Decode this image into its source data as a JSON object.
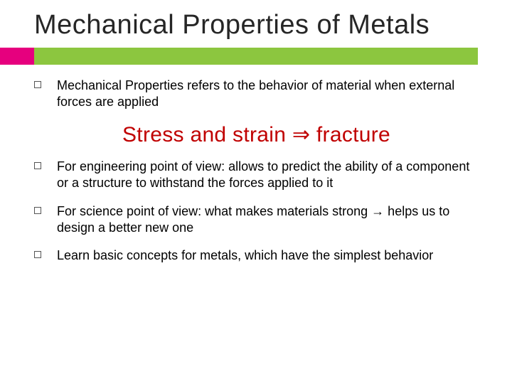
{
  "title": "Mechanical Properties of Metals",
  "accent": {
    "pink": "#e6007e",
    "green": "#8cc63f"
  },
  "bullets": {
    "b0": "Mechanical Properties refers to the behavior of material when external forces are applied",
    "b1": "For engineering point of view: allows to predict the ability of a component or a structure to withstand the forces applied to it",
    "b2": "For science point of view: what makes materials strong → helps us to design a better new one",
    "b3": "Learn basic concepts for metals, which have the simplest behavior"
  },
  "sub_headline": {
    "text": "Stress and strain ⇒ fracture",
    "color": "#c00000",
    "fontsize": 30
  },
  "body_fontsize": 18,
  "title_fontsize": 38
}
